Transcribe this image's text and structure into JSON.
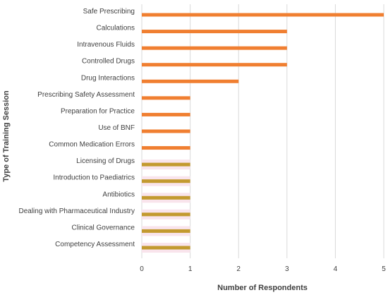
{
  "chart_data": {
    "type": "bar",
    "orientation": "horizontal",
    "title": "",
    "xlabel": "Number of Respondents",
    "ylabel": "Type of Training Session",
    "xlim": [
      0,
      5
    ],
    "xticks": [
      "0",
      "1",
      "2",
      "3",
      "4",
      "5"
    ],
    "grid": true,
    "categories": [
      "Safe Prescribing",
      "Calculations",
      "Intravenous Fluids",
      "Controlled Drugs",
      "Drug Interactions",
      "Prescribing Safety Assessment",
      "Preparation for Practice",
      "Use of BNF",
      "Common Medication Errors",
      "Licensing of Drugs",
      "Introduction to Paediatrics",
      "Antibiotics",
      "Dealing with Pharmaceutical Industry",
      "Clinical Governance",
      "Competency Assessment"
    ],
    "values": [
      5,
      3,
      3,
      3,
      2,
      1,
      1,
      1,
      1,
      1,
      1,
      1,
      1,
      1,
      1
    ],
    "bar_colors": [
      "#f07f31",
      "#f07f31",
      "#f07f31",
      "#f07f31",
      "#f07f31",
      "#f07f31",
      "#f07f31",
      "#f07f31",
      "#f07f31",
      "#c39a2f",
      "#c39a2f",
      "#c39a2f",
      "#c39a2f",
      "#c39a2f",
      "#c39a2f"
    ],
    "highlight_color": "#f9e4ec"
  }
}
